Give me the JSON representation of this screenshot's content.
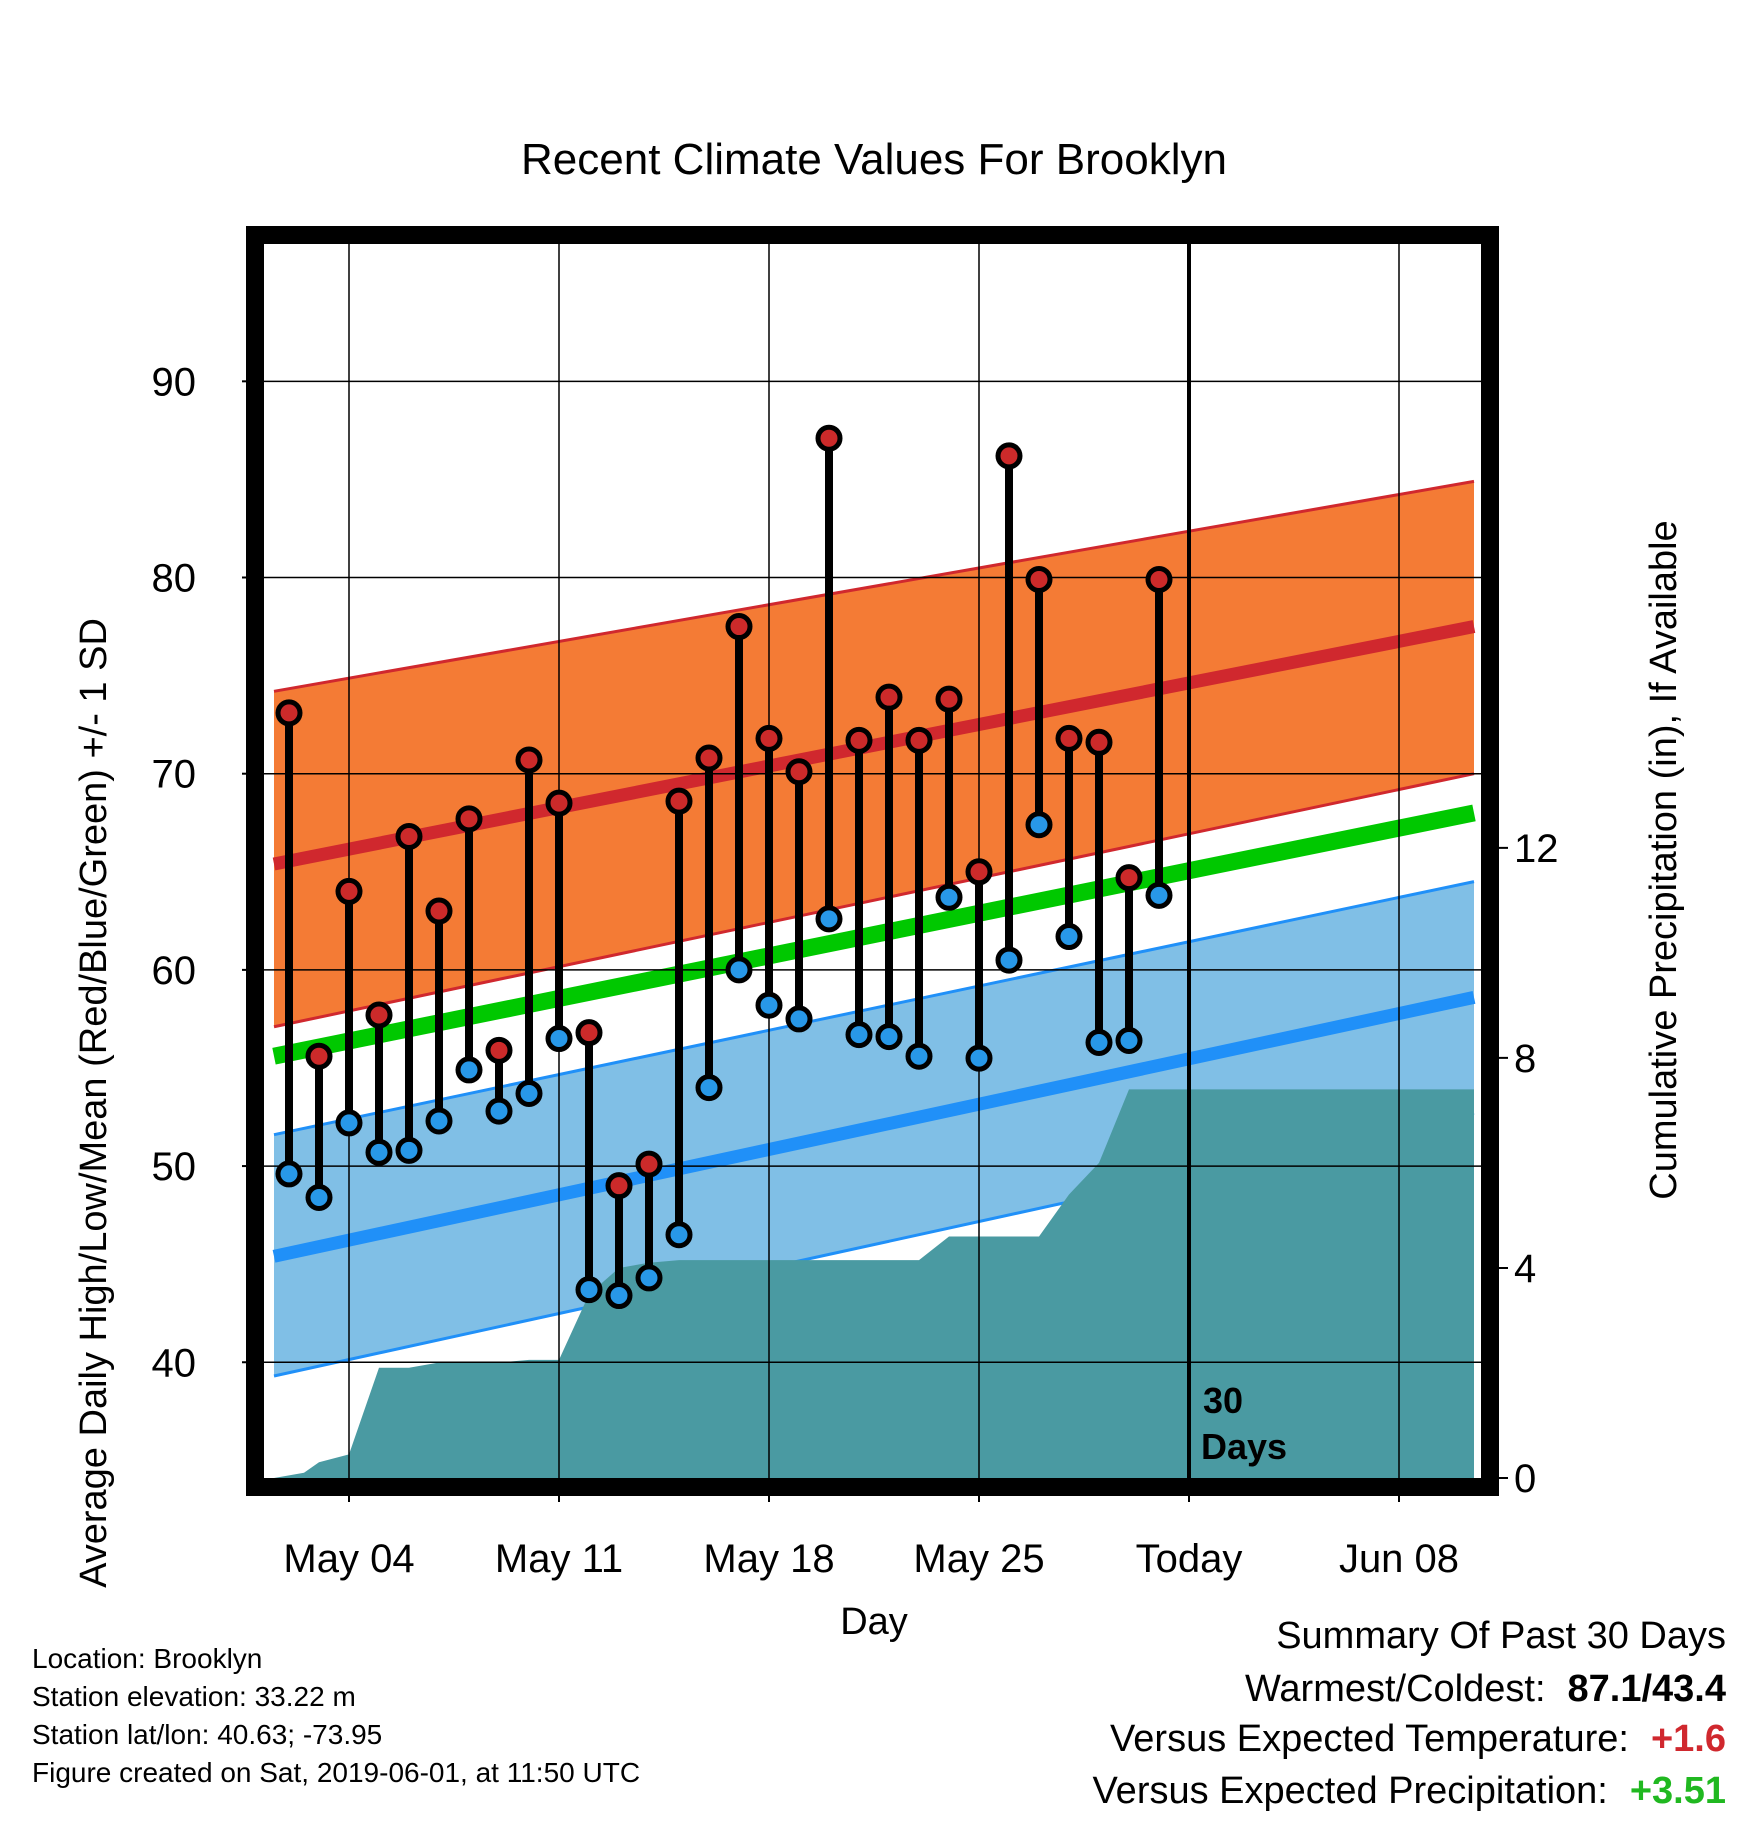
{
  "chart_data": {
    "type": "line",
    "title": "Recent Climate Values For Brooklyn",
    "xlabel": "Day",
    "ylabel": "Average Daily High/Low/Mean (Red/Blue/Green) +/- 1 SD",
    "ylabel_right": "Cumulative Precipitation (in), If Available",
    "xticks": [
      "May 04",
      "May 11",
      "May 18",
      "May 25",
      "Today",
      "Jun 08"
    ],
    "yticks_left": [
      "40",
      "50",
      "60",
      "70",
      "80",
      "90"
    ],
    "yticks_right": [
      "0",
      "4",
      "8",
      "12"
    ],
    "today_marker": {
      "line1": "30",
      "line2": "Days"
    },
    "ylim": [
      34.1,
      97
    ],
    "ylim_right": [
      0,
      23.5
    ],
    "grid": true,
    "colors": {
      "high_band": "#f47b35",
      "high_mean": "#d0282e",
      "low_band": "#80bfe6",
      "low_mean": "#2090f8",
      "mean": "#00c800",
      "precip": "#4a9aa2",
      "high_dot": "#cc2a2a",
      "low_dot": "#2898e8"
    },
    "observed": {
      "days": [
        "May 02",
        "May 03",
        "May 04",
        "May 05",
        "May 06",
        "May 07",
        "May 08",
        "May 09",
        "May 10",
        "May 11",
        "May 12",
        "May 13",
        "May 14",
        "May 15",
        "May 16",
        "May 17",
        "May 18",
        "May 19",
        "May 20",
        "May 21",
        "May 22",
        "May 23",
        "May 24",
        "May 25",
        "May 26",
        "May 27",
        "May 28",
        "May 29",
        "May 30",
        "May 31"
      ],
      "high": [
        73.1,
        55.6,
        64.0,
        57.7,
        66.8,
        63.0,
        67.7,
        55.9,
        70.7,
        68.5,
        56.8,
        49.0,
        50.1,
        68.6,
        70.8,
        77.5,
        71.8,
        70.1,
        87.1,
        71.7,
        73.9,
        71.7,
        73.8,
        65.0,
        86.2,
        79.9,
        71.8,
        71.6,
        64.7,
        79.9
      ],
      "low": [
        49.6,
        48.4,
        52.2,
        50.7,
        50.8,
        52.3,
        54.9,
        52.8,
        53.7,
        56.5,
        43.7,
        43.4,
        44.3,
        46.5,
        54.0,
        60.0,
        58.2,
        57.5,
        62.6,
        56.7,
        56.6,
        55.6,
        63.7,
        55.5,
        60.5,
        67.4,
        61.7,
        56.3,
        56.4,
        63.8
      ]
    },
    "normals": {
      "days": [
        "May 01.5",
        "Jun 10.5"
      ],
      "high_mean": [
        65.4,
        77.5
      ],
      "high_sd_upper": [
        74.2,
        84.9
      ],
      "high_sd_lower": [
        57.1,
        70.0
      ],
      "mean": [
        55.6,
        68.0
      ],
      "low_mean": [
        45.4,
        58.6
      ],
      "low_sd_upper": [
        51.6,
        64.5
      ],
      "low_sd_lower": [
        39.3,
        52.7
      ]
    },
    "precipitation": {
      "days": [
        "May 01.5",
        "May 02.5",
        "May 03",
        "May 04",
        "May 05",
        "May 06",
        "May 07",
        "May 08",
        "May 09",
        "May 10",
        "May 11",
        "May 12",
        "May 13",
        "May 14",
        "May 15",
        "May 16",
        "May 17",
        "May 18",
        "May 19",
        "May 20",
        "May 21",
        "May 22",
        "May 23",
        "May 24",
        "May 25",
        "May 26",
        "May 27",
        "May 28",
        "May 29",
        "May 30",
        "May 31",
        "Jun 10.5"
      ],
      "cumulative": [
        0.0,
        0.1,
        0.3,
        0.45,
        2.1,
        2.1,
        2.2,
        2.2,
        2.2,
        2.25,
        2.25,
        3.5,
        4.0,
        4.1,
        4.15,
        4.15,
        4.15,
        4.15,
        4.15,
        4.15,
        4.15,
        4.15,
        4.15,
        4.6,
        4.6,
        4.6,
        4.6,
        5.4,
        6.0,
        7.4,
        7.4,
        7.4
      ]
    }
  },
  "station": {
    "location": "Location: Brooklyn",
    "elevation": "Station elevation: 33.22 m",
    "latlon": "Station lat/lon: 40.63; -73.95",
    "created": "Figure created on Sat, 2019-06-01, at 11:50 UTC"
  },
  "summary": {
    "heading": "Summary Of Past 30 Days",
    "warmest_coldest_label": "Warmest/Coldest:",
    "warmest_coldest_value": "87.1/43.4",
    "temp_label": "Versus Expected Temperature:",
    "temp_value": "+1.6",
    "temp_color": "#d0282e",
    "precip_label": "Versus Expected Precipitation:",
    "precip_value": "+3.51",
    "precip_color": "#20b820"
  }
}
